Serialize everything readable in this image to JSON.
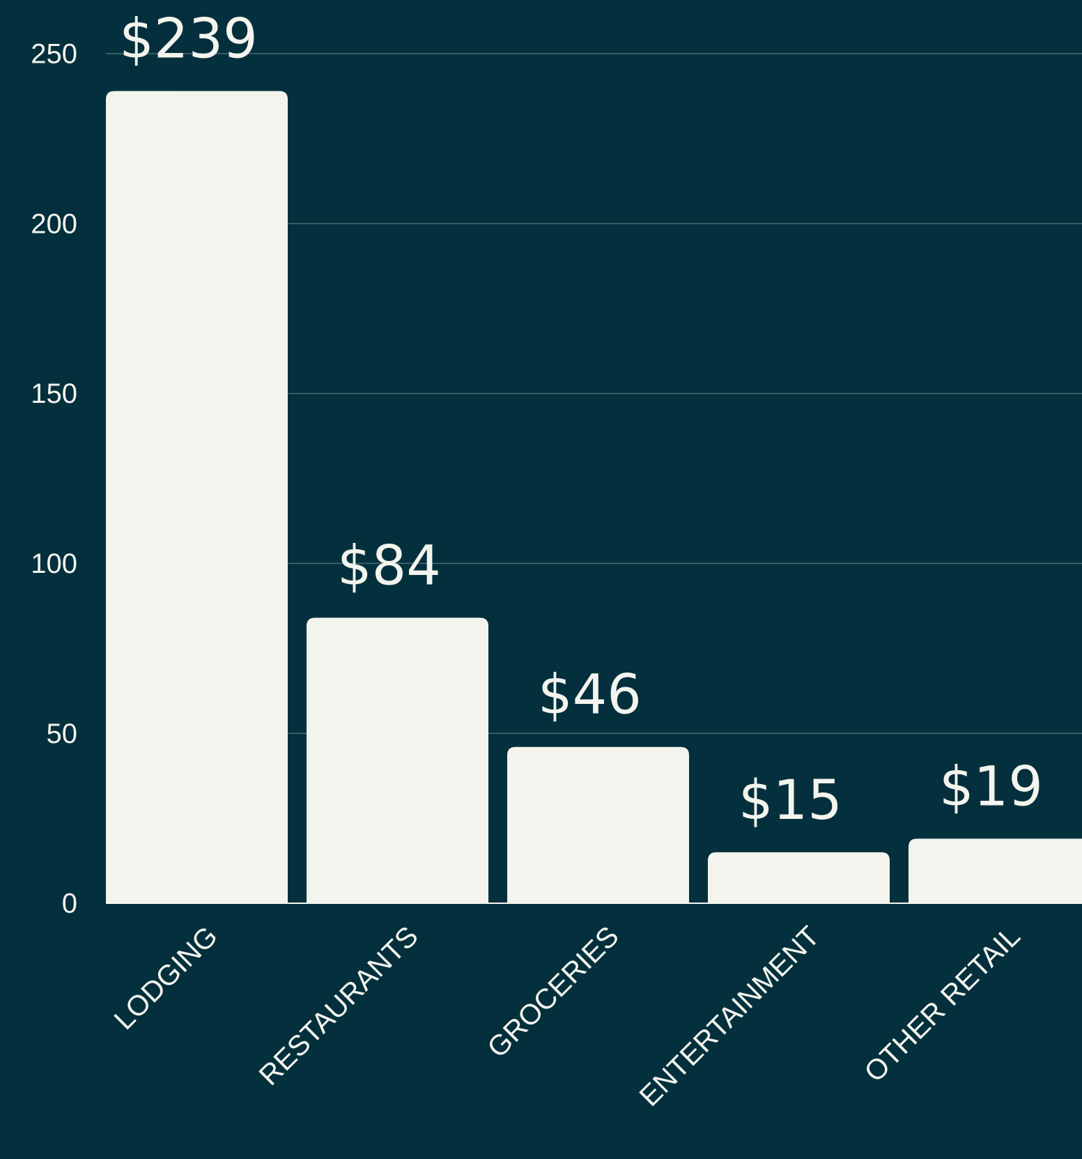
{
  "chart_data": {
    "type": "bar",
    "categories": [
      "LODGING",
      "RESTAURANTS",
      "GROCERIES",
      "ENTERTAINMENT",
      "OTHER RETAIL"
    ],
    "values": [
      239,
      84,
      46,
      15,
      19
    ],
    "value_labels": [
      "$239",
      "$84",
      "$46",
      "$15",
      "$19"
    ],
    "color": "#f4f4ee",
    "ylim": [
      0,
      250
    ],
    "yticks": [
      0,
      50,
      100,
      150,
      200,
      250
    ],
    "grid": true
  }
}
